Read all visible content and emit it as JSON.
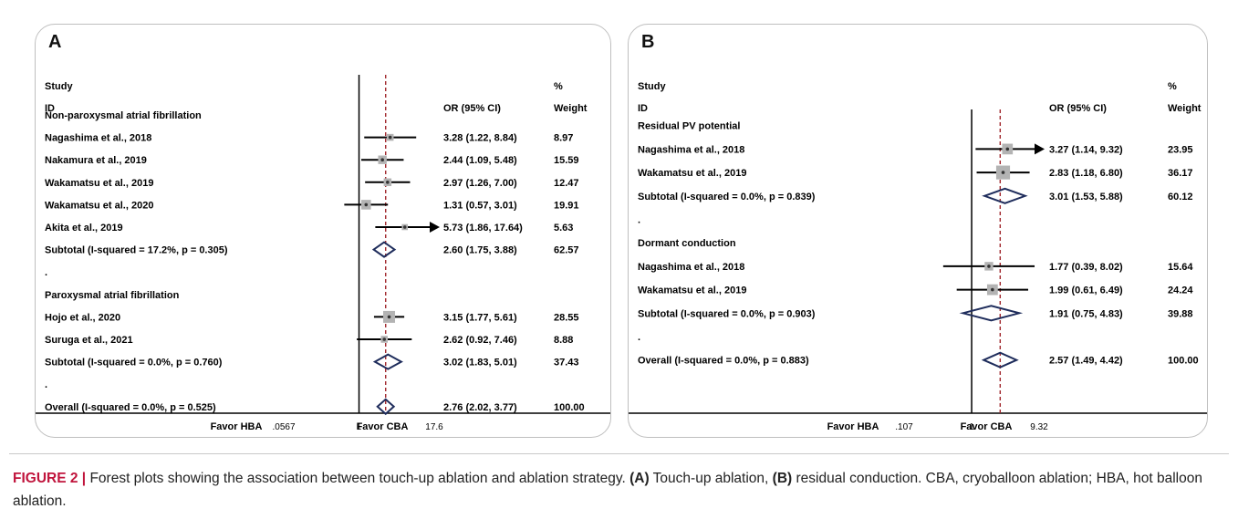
{
  "chart_data": [
    {
      "type": "forest",
      "panel": "A",
      "header": {
        "study": "Study",
        "id": "ID",
        "or": "OR (95% CI)",
        "pct": "%",
        "weight": "Weight"
      },
      "log_scale": true,
      "xlim": [
        0.0567,
        17.6
      ],
      "null_line": 1,
      "overall_or": 2.76,
      "axis": {
        "ticks": [
          {
            "value": 0.0567,
            "label": ".0567"
          },
          {
            "value": 1,
            "label": "1"
          },
          {
            "value": 17.6,
            "label": "17.6"
          }
        ],
        "left_label": "Favor HBA",
        "right_label": "Favor CBA"
      },
      "rows": [
        {
          "kind": "group",
          "label": "Non-paroxysmal atrial fibrillation"
        },
        {
          "kind": "study",
          "label": "Nagashima et al., 2018",
          "or": 3.28,
          "lo": 1.22,
          "hi": 8.84,
          "ci_text": "3.28 (1.22, 8.84)",
          "weight": 8.97,
          "weight_text": "8.97"
        },
        {
          "kind": "study",
          "label": "Nakamura et al., 2019",
          "or": 2.44,
          "lo": 1.09,
          "hi": 5.48,
          "ci_text": "2.44 (1.09, 5.48)",
          "weight": 15.59,
          "weight_text": "15.59"
        },
        {
          "kind": "study",
          "label": "Wakamatsu et al., 2019",
          "or": 2.97,
          "lo": 1.26,
          "hi": 7.0,
          "ci_text": "2.97 (1.26, 7.00)",
          "weight": 12.47,
          "weight_text": "12.47"
        },
        {
          "kind": "study",
          "label": "Wakamatsu et al., 2020",
          "or": 1.31,
          "lo": 0.57,
          "hi": 3.01,
          "ci_text": "1.31 (0.57, 3.01)",
          "weight": 19.91,
          "weight_text": "19.91"
        },
        {
          "kind": "study",
          "label": "Akita et al., 2019",
          "or": 5.73,
          "lo": 1.86,
          "hi": 17.64,
          "ci_text": "5.73 (1.86, 17.64)",
          "weight": 5.63,
          "weight_text": "5.63",
          "arrow": "right"
        },
        {
          "kind": "subtotal",
          "label": "Subtotal  (I-squared = 17.2%, p = 0.305)",
          "or": 2.6,
          "lo": 1.75,
          "hi": 3.88,
          "ci_text": "2.60 (1.75, 3.88)",
          "weight_text": "62.57"
        },
        {
          "kind": "dot",
          "label": "."
        },
        {
          "kind": "group",
          "label": "Paroxysmal atrial fibrillation"
        },
        {
          "kind": "study",
          "label": "Hojo et al., 2020",
          "or": 3.15,
          "lo": 1.77,
          "hi": 5.61,
          "ci_text": "3.15 (1.77, 5.61)",
          "weight": 28.55,
          "weight_text": "28.55"
        },
        {
          "kind": "study",
          "label": "Suruga et al., 2021",
          "or": 2.62,
          "lo": 0.92,
          "hi": 7.46,
          "ci_text": "2.62 (0.92, 7.46)",
          "weight": 8.88,
          "weight_text": "8.88"
        },
        {
          "kind": "subtotal",
          "label": "Subtotal  (I-squared = 0.0%, p = 0.760)",
          "or": 3.02,
          "lo": 1.83,
          "hi": 5.01,
          "ci_text": "3.02 (1.83, 5.01)",
          "weight_text": "37.43"
        },
        {
          "kind": "dot",
          "label": "."
        },
        {
          "kind": "subtotal",
          "label": "Overall  (I-squared = 0.0%, p = 0.525)",
          "or": 2.76,
          "lo": 2.02,
          "hi": 3.77,
          "ci_text": "2.76 (2.02, 3.77)",
          "weight_text": "100.00"
        }
      ]
    },
    {
      "type": "forest",
      "panel": "B",
      "header": {
        "study": "Study",
        "id": "ID",
        "or": "OR (95% CI)",
        "pct": "%",
        "weight": "Weight"
      },
      "log_scale": true,
      "xlim": [
        0.107,
        9.32
      ],
      "null_line": 1,
      "overall_or": 2.57,
      "axis": {
        "ticks": [
          {
            "value": 0.107,
            "label": ".107"
          },
          {
            "value": 1,
            "label": "1"
          },
          {
            "value": 9.32,
            "label": "9.32"
          }
        ],
        "left_label": "Favor HBA",
        "right_label": "Favor CBA"
      },
      "rows": [
        {
          "kind": "blank",
          "label": ""
        },
        {
          "kind": "group",
          "label": "Residual PV potential"
        },
        {
          "kind": "study",
          "label": "Nagashima et al., 2018",
          "or": 3.27,
          "lo": 1.14,
          "hi": 9.32,
          "ci_text": "3.27 (1.14, 9.32)",
          "weight": 23.95,
          "weight_text": "23.95",
          "arrow": "right"
        },
        {
          "kind": "study",
          "label": "Wakamatsu et al., 2019",
          "or": 2.83,
          "lo": 1.18,
          "hi": 6.8,
          "ci_text": "2.83 (1.18, 6.80)",
          "weight": 36.17,
          "weight_text": "36.17"
        },
        {
          "kind": "subtotal",
          "label": "Subtotal  (I-squared = 0.0%, p = 0.839)",
          "or": 3.01,
          "lo": 1.53,
          "hi": 5.88,
          "ci_text": "3.01 (1.53, 5.88)",
          "weight_text": "60.12"
        },
        {
          "kind": "dot",
          "label": "."
        },
        {
          "kind": "group",
          "label": "Dormant conduction"
        },
        {
          "kind": "study",
          "label": "Nagashima et al., 2018",
          "or": 1.77,
          "lo": 0.39,
          "hi": 8.02,
          "ci_text": "1.77 (0.39, 8.02)",
          "weight": 15.64,
          "weight_text": "15.64"
        },
        {
          "kind": "study",
          "label": "Wakamatsu et al., 2019",
          "or": 1.99,
          "lo": 0.61,
          "hi": 6.49,
          "ci_text": "1.99 (0.61, 6.49)",
          "weight": 24.24,
          "weight_text": "24.24"
        },
        {
          "kind": "subtotal",
          "label": "Subtotal  (I-squared = 0.0%, p = 0.903)",
          "or": 1.91,
          "lo": 0.75,
          "hi": 4.83,
          "ci_text": "1.91 (0.75, 4.83)",
          "weight_text": "39.88"
        },
        {
          "kind": "dot",
          "label": "."
        },
        {
          "kind": "subtotal",
          "label": "Overall  (I-squared = 0.0%, p = 0.883)",
          "or": 2.57,
          "lo": 1.49,
          "hi": 4.42,
          "ci_text": "2.57 (1.49, 4.42)",
          "weight_text": "100.00"
        }
      ]
    }
  ],
  "caption": {
    "figure_label": "FIGURE 2 |",
    "part1": " Forest plots showing the association between touch-up ablation and ablation strategy. ",
    "a_label": "(A)",
    "part2": " Touch-up ablation, ",
    "b_label": "(B)",
    "part3": " residual conduction. CBA, cryoballoon ablation; HBA, hot balloon ablation."
  },
  "colors": {
    "ci_line": "#000000",
    "diamond": "#1f2d5c",
    "overall_line": "#a0262b",
    "weight_box": "#b3b3b3",
    "figure_label": "#c0143c"
  }
}
